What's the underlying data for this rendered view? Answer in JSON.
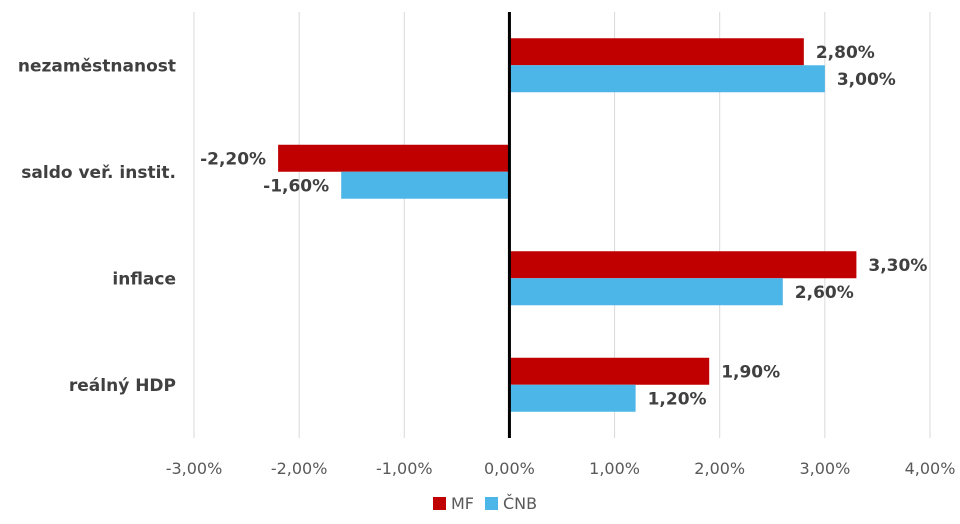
{
  "chart_data": {
    "type": "bar",
    "orientation": "horizontal",
    "categories": [
      "nezaměstnanost",
      "saldo veř. instit.",
      "inflace",
      "reálný HDP"
    ],
    "series": [
      {
        "name": "MF",
        "color": "#C00000",
        "values": [
          2.8,
          -2.2,
          3.3,
          1.9
        ],
        "labels": [
          "2,80%",
          "-2,20%",
          "3,30%",
          "1,90%"
        ]
      },
      {
        "name": "ČNB",
        "color": "#4DB6E8",
        "values": [
          3.0,
          -1.6,
          2.6,
          1.2
        ],
        "labels": [
          "3,00%",
          "-1,60%",
          "2,60%",
          "1,20%"
        ]
      }
    ],
    "xlim": [
      -3,
      4
    ],
    "x_ticks": [
      -3,
      -2,
      -1,
      0,
      1,
      2,
      3,
      4
    ],
    "x_tick_labels": [
      "-3,00%",
      "-2,00%",
      "-1,00%",
      "0,00%",
      "1,00%",
      "2,00%",
      "3,00%",
      "4,00%"
    ],
    "grid": true,
    "legend_position": "bottom",
    "title": "",
    "xlabel": "",
    "ylabel": ""
  }
}
